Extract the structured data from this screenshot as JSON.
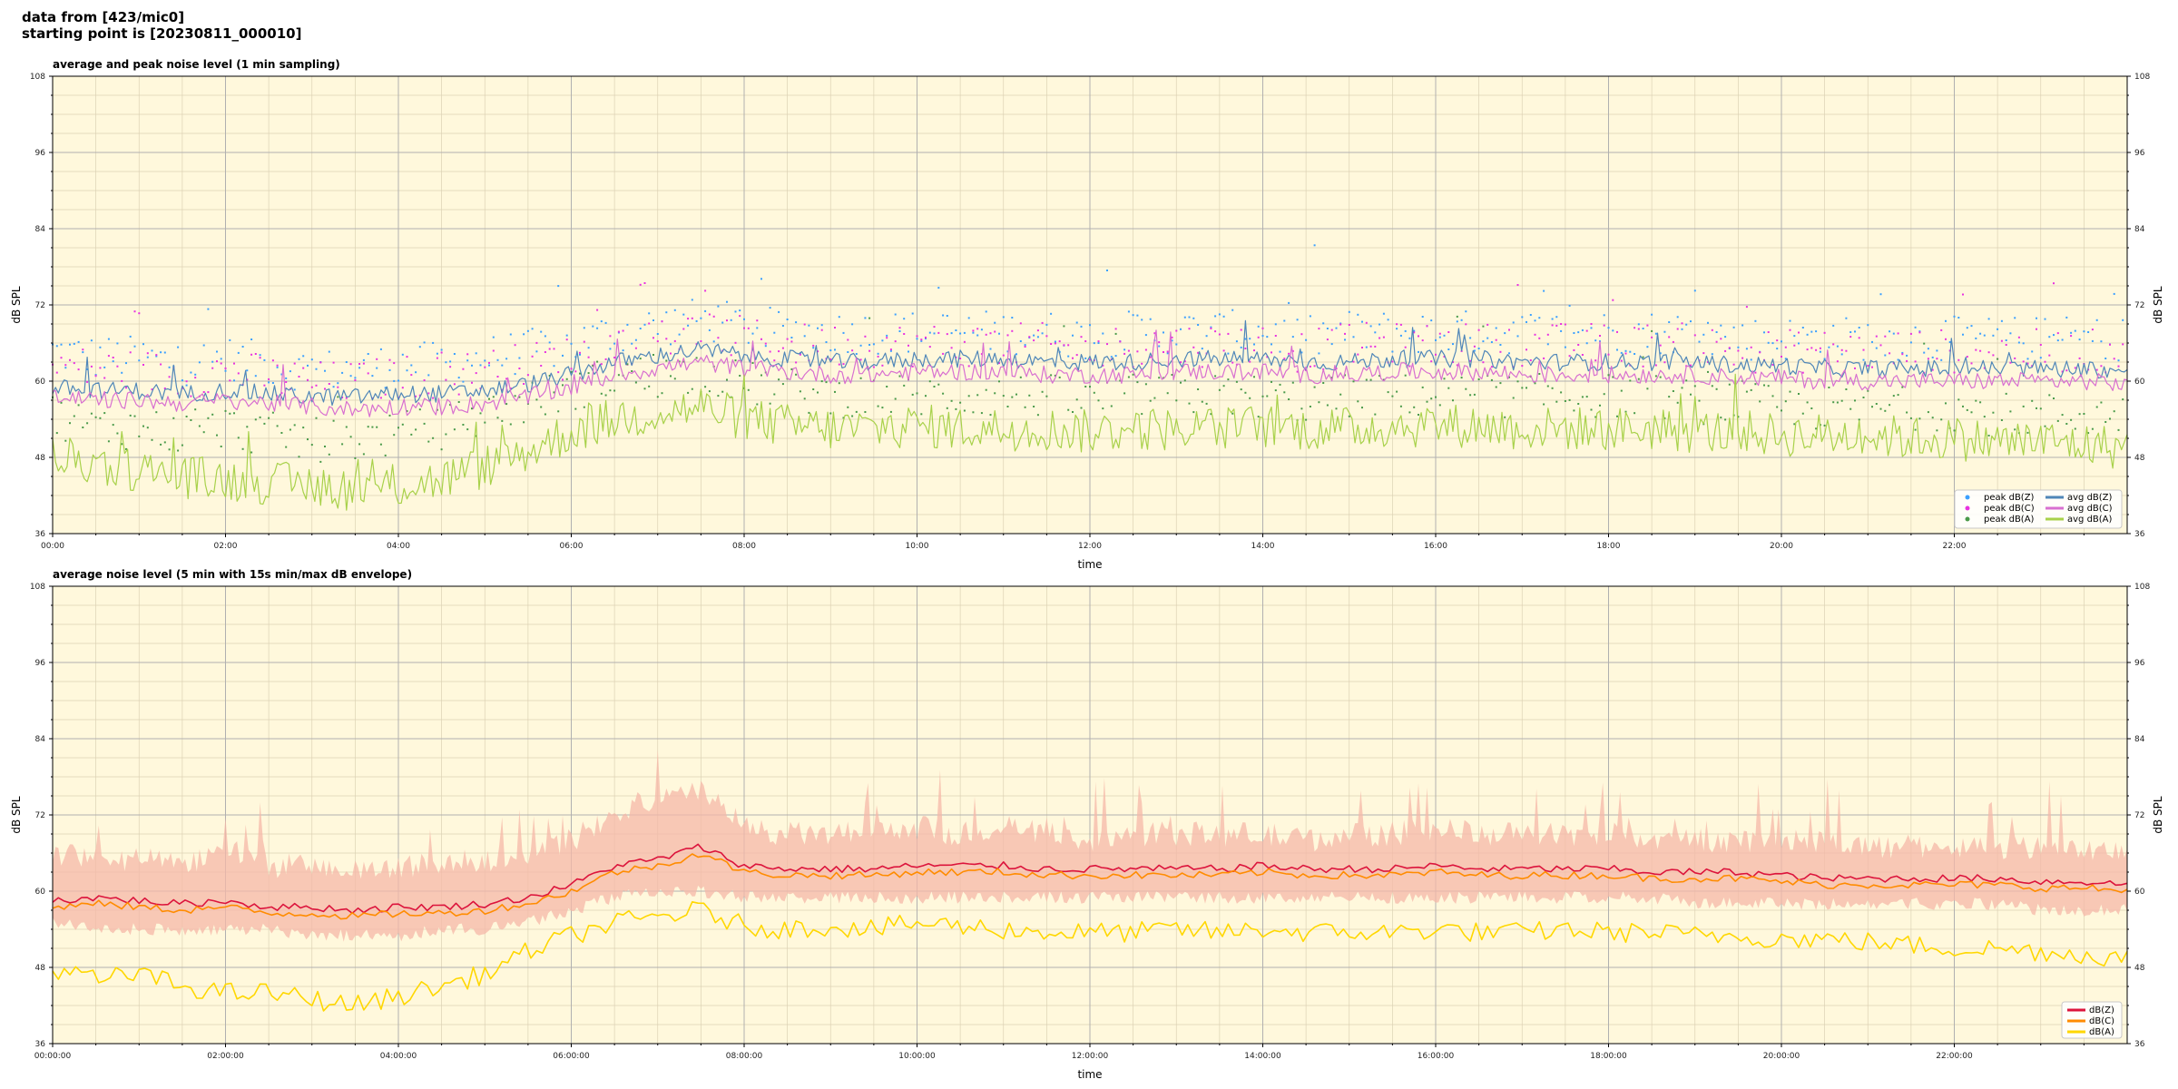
{
  "header": {
    "line1": "data from [423/mic0]",
    "line2": "starting point is [20230811_000010]"
  },
  "colors": {
    "background": "#fff8dc",
    "grid": "#b0b0b0",
    "zpeak": "#3ba0ff",
    "cpeak": "#e832e0",
    "apeak": "#4a9a4a",
    "zavg": "#4f86b8",
    "cavg": "#d86fd0",
    "aavg": "#a8d14a",
    "z5": "#dc143c",
    "c5": "#ff8c00",
    "a5": "#ffd700",
    "env": "#f5b8a8"
  },
  "chart_data": [
    {
      "type": "line",
      "title": "average and peak noise level (1 min sampling)",
      "xlabel": "time",
      "ylabel": "dB SPL",
      "xlim": [
        0,
        24
      ],
      "ylim": [
        36,
        108
      ],
      "y_ticks": [
        "36",
        "48",
        "60",
        "72",
        "84",
        "96",
        "108"
      ],
      "x_ticks": [
        "00:00",
        "02:00",
        "04:00",
        "06:00",
        "08:00",
        "10:00",
        "12:00",
        "14:00",
        "16:00",
        "18:00",
        "20:00",
        "22:00"
      ],
      "grid": true,
      "legend_position": "bottom-right",
      "x_hours": [
        0,
        0.5,
        1,
        1.5,
        2,
        2.5,
        3,
        3.5,
        4,
        4.5,
        5,
        5.5,
        6,
        6.5,
        7,
        7.5,
        8,
        8.5,
        9,
        9.5,
        10,
        10.5,
        11,
        11.5,
        12,
        12.5,
        13,
        13.5,
        14,
        14.5,
        15,
        15.5,
        16,
        16.5,
        17,
        17.5,
        18,
        18.5,
        19,
        19.5,
        20,
        20.5,
        21,
        21.5,
        22,
        22.5,
        23,
        23.5,
        24
      ],
      "series": [
        {
          "name": "peak dB(Z)",
          "style": "points",
          "values": [
            64,
            63,
            63,
            62,
            63,
            62,
            61,
            61,
            62,
            62,
            63,
            64,
            65,
            67,
            68,
            69,
            68,
            67,
            67,
            67,
            67,
            67,
            67,
            67,
            66,
            67,
            67,
            67,
            67,
            66,
            67,
            67,
            67,
            67,
            67,
            67,
            67,
            67,
            67,
            66,
            66,
            66,
            66,
            66,
            66,
            66,
            66,
            66,
            66
          ]
        },
        {
          "name": "peak dB(C)",
          "style": "points",
          "values": [
            62,
            61,
            61,
            60,
            61,
            60,
            59,
            59,
            60,
            60,
            61,
            62,
            63,
            65,
            66,
            67,
            66,
            65,
            65,
            65,
            65,
            65,
            65,
            65,
            64,
            65,
            65,
            65,
            65,
            64,
            65,
            65,
            65,
            65,
            65,
            65,
            65,
            65,
            65,
            64,
            64,
            64,
            64,
            64,
            64,
            64,
            64,
            64,
            64
          ]
        },
        {
          "name": "peak dB(A)",
          "style": "points",
          "values": [
            54,
            52,
            52,
            51,
            52,
            51,
            50,
            50,
            51,
            52,
            54,
            56,
            58,
            60,
            60,
            61,
            59,
            58,
            57,
            57,
            57,
            57,
            57,
            57,
            56,
            57,
            57,
            57,
            57,
            56,
            57,
            57,
            57,
            57,
            57,
            57,
            57,
            57,
            56,
            56,
            55,
            55,
            55,
            55,
            55,
            54,
            54,
            54,
            54
          ]
        },
        {
          "name": "avg dB(Z)",
          "style": "line",
          "values": [
            59,
            58.5,
            58.5,
            58,
            58.5,
            58,
            57.5,
            57.5,
            58,
            58,
            58.5,
            59.5,
            61,
            63,
            64,
            65,
            64,
            63.5,
            63,
            63,
            63.5,
            63.5,
            63.5,
            63,
            63,
            63,
            63.5,
            63.5,
            63.5,
            63,
            63,
            63.5,
            63.5,
            63.5,
            63,
            63,
            63,
            63,
            63,
            62.5,
            62.5,
            62,
            62,
            62,
            62,
            62,
            62,
            62,
            61.5
          ]
        },
        {
          "name": "avg dB(C)",
          "style": "line",
          "values": [
            57.5,
            57,
            57,
            56.5,
            57,
            56.5,
            56,
            55.5,
            56,
            56,
            56.5,
            57.5,
            59,
            61,
            62,
            63,
            62,
            61.5,
            61,
            61,
            61.5,
            61.5,
            61.5,
            61,
            61,
            61,
            61.5,
            61.5,
            61.5,
            61,
            61,
            61.5,
            61.5,
            61.5,
            61,
            61,
            61,
            61,
            61,
            60.5,
            60.5,
            60,
            60,
            60,
            60,
            60,
            60,
            60,
            59.5
          ]
        },
        {
          "name": "avg dB(A)",
          "style": "line",
          "values": [
            48,
            47,
            46,
            45,
            44.5,
            44,
            43.5,
            43,
            43.5,
            44.5,
            46.5,
            49,
            52,
            54,
            55,
            56,
            54,
            53,
            52.5,
            52.5,
            53,
            52.5,
            52.5,
            52.5,
            52,
            52.5,
            52.5,
            52.5,
            53,
            52.5,
            52.5,
            53,
            53,
            53,
            52.5,
            52.5,
            52.5,
            52.5,
            52,
            52,
            51.5,
            51.5,
            51.5,
            51,
            51,
            50.5,
            50.5,
            50,
            49.5
          ]
        }
      ]
    },
    {
      "type": "line",
      "title": "average noise level (5 min with 15s min/max dB envelope)",
      "xlabel": "time",
      "ylabel": "dB SPL",
      "xlim": [
        0,
        24
      ],
      "ylim": [
        36,
        108
      ],
      "y_ticks": [
        "36",
        "48",
        "60",
        "72",
        "84",
        "96",
        "108"
      ],
      "x_ticks": [
        "00:00:00",
        "02:00:00",
        "04:00:00",
        "06:00:00",
        "08:00:00",
        "10:00:00",
        "12:00:00",
        "14:00:00",
        "16:00:00",
        "18:00:00",
        "20:00:00",
        "22:00:00"
      ],
      "grid": true,
      "legend_position": "bottom-right",
      "x_hours": [
        0,
        0.5,
        1,
        1.5,
        2,
        2.5,
        3,
        3.5,
        4,
        4.5,
        5,
        5.5,
        6,
        6.5,
        7,
        7.5,
        8,
        8.5,
        9,
        9.5,
        10,
        10.5,
        11,
        11.5,
        12,
        12.5,
        13,
        13.5,
        14,
        14.5,
        15,
        15.5,
        16,
        16.5,
        17,
        17.5,
        18,
        18.5,
        19,
        19.5,
        20,
        20.5,
        21,
        21.5,
        22,
        22.5,
        23,
        23.5,
        24
      ],
      "envelope": {
        "name": "15s min/max dB envelope",
        "upper": [
          64,
          63,
          63,
          62,
          65,
          62,
          62,
          61,
          62,
          62,
          63,
          64,
          66,
          70,
          72,
          74,
          68,
          67,
          67,
          67,
          68,
          67,
          68,
          67,
          66,
          67,
          67,
          67,
          67,
          66,
          67,
          67,
          68,
          67,
          67,
          67,
          67,
          66,
          66,
          66,
          66,
          66,
          65,
          65,
          65,
          65,
          65,
          64,
          64
        ],
        "lower": [
          56,
          55,
          55,
          55,
          55,
          55,
          54,
          54,
          54,
          55,
          55,
          56,
          58,
          60,
          61,
          61,
          60,
          60,
          60,
          60,
          60,
          60,
          60,
          60,
          60,
          60,
          60,
          60,
          60,
          60,
          60,
          60,
          60,
          60,
          60,
          60,
          60,
          60,
          59,
          59,
          59,
          59,
          59,
          59,
          59,
          59,
          58,
          58,
          58
        ]
      },
      "series": [
        {
          "name": "dB(Z)",
          "values": [
            58.5,
            59,
            58.5,
            58,
            58.5,
            57.5,
            57.5,
            57,
            57.5,
            57.5,
            58,
            59,
            61,
            64,
            65,
            67,
            64,
            63.5,
            63.5,
            63.5,
            64,
            64,
            64,
            63.5,
            63.5,
            63.5,
            63.5,
            63.5,
            64,
            63.5,
            63.5,
            63.5,
            64,
            63.5,
            63.5,
            63.5,
            63.5,
            63,
            63,
            63,
            62.5,
            62,
            62,
            62,
            62,
            62,
            61.5,
            61.5,
            61
          ]
        },
        {
          "name": "dB(C)",
          "values": [
            57.5,
            58,
            57.5,
            57,
            57.5,
            56.5,
            56.5,
            56,
            56.5,
            56.5,
            57,
            58,
            60,
            63,
            64,
            66,
            63,
            62.5,
            62.5,
            62.5,
            63,
            63,
            63,
            62.5,
            62.5,
            62.5,
            62.5,
            62.5,
            63,
            62.5,
            62.5,
            62.5,
            63,
            62.5,
            62.5,
            62.5,
            62.5,
            62,
            62,
            62,
            61.5,
            61,
            61,
            61,
            61,
            61,
            60.5,
            60.5,
            60
          ]
        },
        {
          "name": "dB(A)",
          "values": [
            48,
            46,
            47,
            45,
            44,
            44,
            43,
            42,
            43.5,
            45,
            47,
            50.5,
            53,
            55,
            56,
            57,
            54.5,
            54,
            54.5,
            54,
            55,
            54.5,
            54,
            53.5,
            53.5,
            53.5,
            54,
            53.5,
            54,
            53.5,
            53.5,
            53.5,
            54,
            53.5,
            53.5,
            54,
            53.5,
            53.5,
            53,
            53,
            52.5,
            52.5,
            52,
            51.5,
            51,
            51,
            50.5,
            50,
            49.5
          ]
        }
      ]
    }
  ]
}
